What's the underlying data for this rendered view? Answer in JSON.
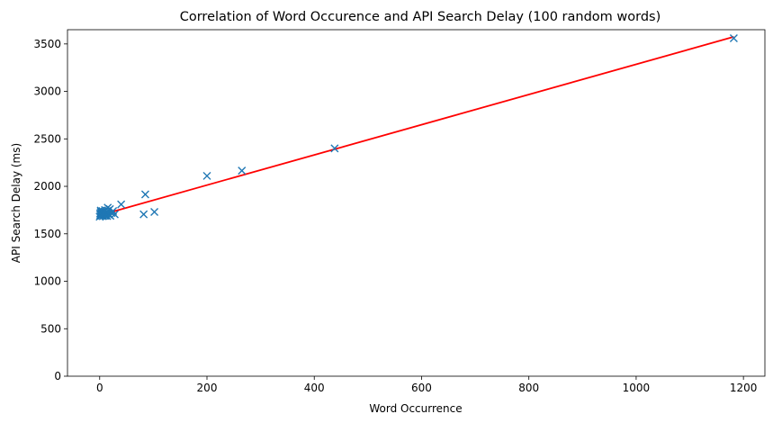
{
  "chart_data": {
    "type": "scatter",
    "title": "Correlation of Word Occurence and API Search Delay (100 random words)",
    "xlabel": "Word Occurrence",
    "ylabel": "API Search Delay (ms)",
    "xlim": [
      -60,
      1240
    ],
    "ylim": [
      0,
      3650
    ],
    "xticks": [
      0,
      200,
      400,
      600,
      800,
      1000,
      1200
    ],
    "yticks": [
      0,
      500,
      1000,
      1500,
      2000,
      2500,
      3000,
      3500
    ],
    "grid": false,
    "legend": "none",
    "series": [
      {
        "marker": "x",
        "color": "#1f77b4",
        "points": [
          [
            0,
            1680
          ],
          [
            1,
            1700
          ],
          [
            1,
            1715
          ],
          [
            2,
            1730
          ],
          [
            2,
            1745
          ],
          [
            3,
            1690
          ],
          [
            3,
            1710
          ],
          [
            4,
            1725
          ],
          [
            5,
            1700
          ],
          [
            5,
            1740
          ],
          [
            6,
            1685
          ],
          [
            7,
            1720
          ],
          [
            8,
            1705
          ],
          [
            9,
            1735
          ],
          [
            10,
            1695
          ],
          [
            10,
            1750
          ],
          [
            11,
            1690
          ],
          [
            12,
            1712
          ],
          [
            13,
            1730
          ],
          [
            14,
            1688
          ],
          [
            15,
            1710
          ],
          [
            16,
            1745
          ],
          [
            18,
            1700
          ],
          [
            19,
            1760
          ],
          [
            20,
            1690
          ],
          [
            22,
            1720
          ],
          [
            25,
            1740
          ],
          [
            28,
            1705
          ],
          [
            15,
            1775
          ],
          [
            40,
            1810
          ],
          [
            82,
            1705
          ],
          [
            85,
            1915
          ],
          [
            102,
            1730
          ],
          [
            200,
            2110
          ],
          [
            265,
            2165
          ],
          [
            438,
            2400
          ],
          [
            1182,
            3560
          ]
        ]
      }
    ],
    "fit_line": {
      "color": "#ff0000",
      "x": [
        0,
        1182
      ],
      "y": [
        1695,
        3575
      ]
    }
  }
}
